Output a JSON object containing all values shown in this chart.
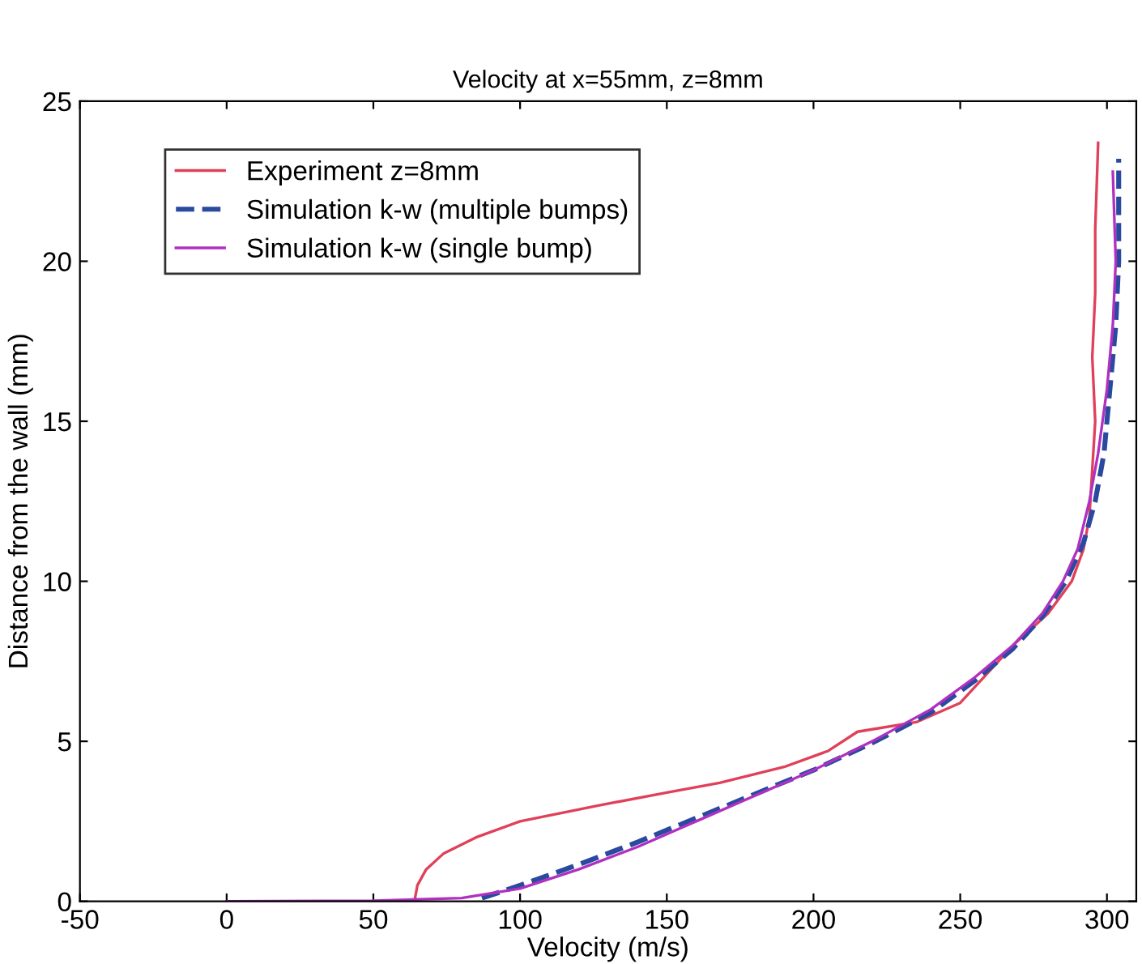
{
  "chart_data": {
    "type": "line",
    "title": "Velocity at x=55mm, z=8mm",
    "xlabel": "Velocity (m/s)",
    "ylabel": "Distance from the wall (mm)",
    "xlim": [
      -50,
      310
    ],
    "xticks": [
      -50,
      0,
      50,
      100,
      150,
      200,
      250,
      300
    ],
    "ylim": [
      0,
      25
    ],
    "yticks": [
      0,
      5,
      10,
      15,
      20,
      25
    ],
    "grid": false,
    "legend": "top left",
    "marker": "none",
    "series": [
      {
        "name": "Experiment z=8mm",
        "color": "#e0405a",
        "line_style": "solid",
        "x": [
          64,
          65,
          68,
          74,
          85,
          100,
          127,
          150,
          168,
          190,
          205,
          215,
          235,
          250,
          258,
          268,
          280,
          288,
          292,
          294,
          295,
          296,
          295,
          296,
          296,
          297
        ],
        "values": [
          0,
          0.5,
          1,
          1.5,
          2,
          2.5,
          3,
          3.4,
          3.7,
          4.2,
          4.7,
          5.3,
          5.6,
          6.2,
          7,
          8,
          9,
          10,
          11,
          12,
          13.5,
          15,
          17,
          19,
          21,
          23.7
        ]
      },
      {
        "name": "Simulation k-w (multiple bumps)",
        "color": "#2a4aa0",
        "line_style": "dashed",
        "x": [
          87,
          100,
          120,
          140,
          160,
          180,
          200,
          220,
          240,
          255,
          268,
          278,
          286,
          292,
          296,
          299,
          301,
          303,
          304,
          304,
          304
        ],
        "values": [
          0.1,
          0.5,
          1.15,
          1.85,
          2.6,
          3.35,
          4.1,
          4.95,
          5.9,
          6.9,
          7.9,
          8.9,
          10,
          11.2,
          12.5,
          14,
          16,
          18,
          20,
          22,
          23.2
        ]
      },
      {
        "name": "Simulation k-w (single bump)",
        "color": "#b030c0",
        "line_style": "solid",
        "x": [
          0,
          50,
          80,
          100,
          120,
          140,
          160,
          180,
          200,
          220,
          240,
          255,
          268,
          278,
          285,
          290,
          294,
          297,
          300,
          302,
          303,
          302
        ],
        "values": [
          0,
          0.02,
          0.1,
          0.4,
          1.0,
          1.7,
          2.5,
          3.3,
          4.1,
          5.0,
          6.0,
          7.0,
          8,
          9,
          10,
          11,
          12.5,
          14,
          16,
          18,
          20,
          22.8
        ]
      }
    ]
  }
}
